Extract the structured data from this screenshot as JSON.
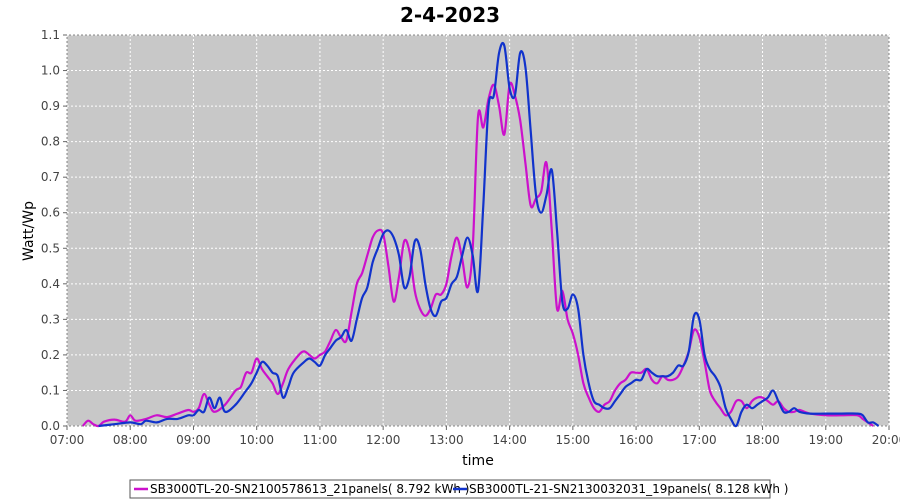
{
  "chart_data": {
    "type": "line",
    "title": "2-4-2023",
    "xlabel": "time",
    "ylabel": "Watt/Wp",
    "x_ticks": [
      "07:00",
      "08:00",
      "09:00",
      "10:00",
      "11:00",
      "12:00",
      "13:00",
      "14:00",
      "15:00",
      "16:00",
      "17:00",
      "18:00",
      "19:00",
      "20:00"
    ],
    "y_ticks": [
      "0.0",
      "0.1",
      "0.2",
      "0.3",
      "0.4",
      "0.5",
      "0.6",
      "0.7",
      "0.8",
      "0.9",
      "1.0",
      "1.1"
    ],
    "xlim": [
      "07:00",
      "20:00"
    ],
    "ylim": [
      0,
      1.1
    ],
    "grid": true,
    "background": "#c8c8c8",
    "legend_position": "bottom",
    "series": [
      {
        "name": "SB3000TL-20-SN2100578613_21panels( 8.792 kWh )",
        "color": "#cc11cc",
        "points": [
          [
            "07:15",
            0.0
          ],
          [
            "07:20",
            0.015
          ],
          [
            "07:25",
            0.005
          ],
          [
            "07:30",
            0.0
          ],
          [
            "07:35",
            0.012
          ],
          [
            "07:45",
            0.018
          ],
          [
            "07:55",
            0.012
          ],
          [
            "08:00",
            0.03
          ],
          [
            "08:05",
            0.015
          ],
          [
            "08:15",
            0.02
          ],
          [
            "08:25",
            0.03
          ],
          [
            "08:35",
            0.025
          ],
          [
            "08:45",
            0.035
          ],
          [
            "08:55",
            0.045
          ],
          [
            "09:00",
            0.04
          ],
          [
            "09:05",
            0.05
          ],
          [
            "09:10",
            0.09
          ],
          [
            "09:15",
            0.06
          ],
          [
            "09:20",
            0.04
          ],
          [
            "09:30",
            0.06
          ],
          [
            "09:40",
            0.1
          ],
          [
            "09:45",
            0.11
          ],
          [
            "09:50",
            0.15
          ],
          [
            "09:55",
            0.15
          ],
          [
            "10:00",
            0.19
          ],
          [
            "10:05",
            0.16
          ],
          [
            "10:10",
            0.14
          ],
          [
            "10:15",
            0.12
          ],
          [
            "10:20",
            0.09
          ],
          [
            "10:25",
            0.12
          ],
          [
            "10:30",
            0.16
          ],
          [
            "10:40",
            0.2
          ],
          [
            "10:45",
            0.21
          ],
          [
            "10:50",
            0.2
          ],
          [
            "10:55",
            0.19
          ],
          [
            "11:00",
            0.2
          ],
          [
            "11:05",
            0.21
          ],
          [
            "11:10",
            0.24
          ],
          [
            "11:15",
            0.27
          ],
          [
            "11:20",
            0.25
          ],
          [
            "11:25",
            0.24
          ],
          [
            "11:30",
            0.32
          ],
          [
            "11:35",
            0.4
          ],
          [
            "11:40",
            0.43
          ],
          [
            "11:45",
            0.48
          ],
          [
            "11:50",
            0.53
          ],
          [
            "11:55",
            0.55
          ],
          [
            "12:00",
            0.54
          ],
          [
            "12:05",
            0.45
          ],
          [
            "12:10",
            0.35
          ],
          [
            "12:15",
            0.42
          ],
          [
            "12:20",
            0.52
          ],
          [
            "12:25",
            0.49
          ],
          [
            "12:30",
            0.38
          ],
          [
            "12:35",
            0.33
          ],
          [
            "12:40",
            0.31
          ],
          [
            "12:45",
            0.33
          ],
          [
            "12:50",
            0.37
          ],
          [
            "12:55",
            0.37
          ],
          [
            "13:00",
            0.4
          ],
          [
            "13:05",
            0.48
          ],
          [
            "13:10",
            0.53
          ],
          [
            "13:15",
            0.47
          ],
          [
            "13:20",
            0.39
          ],
          [
            "13:25",
            0.5
          ],
          [
            "13:30",
            0.87
          ],
          [
            "13:35",
            0.84
          ],
          [
            "13:40",
            0.92
          ],
          [
            "13:45",
            0.96
          ],
          [
            "13:50",
            0.9
          ],
          [
            "13:55",
            0.82
          ],
          [
            "14:00",
            0.96
          ],
          [
            "14:05",
            0.93
          ],
          [
            "14:10",
            0.86
          ],
          [
            "14:15",
            0.74
          ],
          [
            "14:20",
            0.62
          ],
          [
            "14:25",
            0.64
          ],
          [
            "14:30",
            0.66
          ],
          [
            "14:35",
            0.74
          ],
          [
            "14:40",
            0.55
          ],
          [
            "14:45",
            0.33
          ],
          [
            "14:50",
            0.38
          ],
          [
            "14:55",
            0.3
          ],
          [
            "15:00",
            0.26
          ],
          [
            "15:05",
            0.2
          ],
          [
            "15:10",
            0.12
          ],
          [
            "15:15",
            0.08
          ],
          [
            "15:20",
            0.05
          ],
          [
            "15:25",
            0.04
          ],
          [
            "15:30",
            0.06
          ],
          [
            "15:35",
            0.07
          ],
          [
            "15:40",
            0.1
          ],
          [
            "15:45",
            0.12
          ],
          [
            "15:50",
            0.13
          ],
          [
            "15:55",
            0.15
          ],
          [
            "16:00",
            0.15
          ],
          [
            "16:05",
            0.15
          ],
          [
            "16:10",
            0.16
          ],
          [
            "16:15",
            0.13
          ],
          [
            "16:20",
            0.12
          ],
          [
            "16:25",
            0.14
          ],
          [
            "16:30",
            0.13
          ],
          [
            "16:35",
            0.13
          ],
          [
            "16:40",
            0.14
          ],
          [
            "16:45",
            0.17
          ],
          [
            "16:50",
            0.21
          ],
          [
            "16:55",
            0.27
          ],
          [
            "17:00",
            0.25
          ],
          [
            "17:05",
            0.18
          ],
          [
            "17:10",
            0.1
          ],
          [
            "17:15",
            0.07
          ],
          [
            "17:20",
            0.05
          ],
          [
            "17:25",
            0.03
          ],
          [
            "17:30",
            0.04
          ],
          [
            "17:35",
            0.07
          ],
          [
            "17:40",
            0.07
          ],
          [
            "17:45",
            0.05
          ],
          [
            "17:50",
            0.07
          ],
          [
            "17:55",
            0.08
          ],
          [
            "18:00",
            0.08
          ],
          [
            "18:05",
            0.07
          ],
          [
            "18:10",
            0.06
          ],
          [
            "18:15",
            0.07
          ],
          [
            "18:20",
            0.05
          ],
          [
            "18:25",
            0.04
          ],
          [
            "18:30",
            0.04
          ],
          [
            "18:35",
            0.045
          ],
          [
            "18:45",
            0.035
          ],
          [
            "19:00",
            0.03
          ],
          [
            "19:15",
            0.03
          ],
          [
            "19:30",
            0.03
          ],
          [
            "19:35",
            0.02
          ],
          [
            "19:40",
            0.01
          ],
          [
            "19:45",
            0.0
          ]
        ]
      },
      {
        "name": "SB3000TL-21-SN2130032031_19panels( 8.128 kWh )",
        "color": "#1133cc",
        "points": [
          [
            "07:30",
            0.0
          ],
          [
            "07:45",
            0.005
          ],
          [
            "08:00",
            0.01
          ],
          [
            "08:10",
            0.005
          ],
          [
            "08:15",
            0.015
          ],
          [
            "08:25",
            0.01
          ],
          [
            "08:35",
            0.02
          ],
          [
            "08:45",
            0.02
          ],
          [
            "08:55",
            0.03
          ],
          [
            "09:00",
            0.03
          ],
          [
            "09:05",
            0.045
          ],
          [
            "09:10",
            0.04
          ],
          [
            "09:15",
            0.08
          ],
          [
            "09:20",
            0.05
          ],
          [
            "09:25",
            0.08
          ],
          [
            "09:30",
            0.04
          ],
          [
            "09:40",
            0.06
          ],
          [
            "09:50",
            0.1
          ],
          [
            "09:55",
            0.12
          ],
          [
            "10:00",
            0.15
          ],
          [
            "10:05",
            0.18
          ],
          [
            "10:10",
            0.17
          ],
          [
            "10:15",
            0.15
          ],
          [
            "10:20",
            0.14
          ],
          [
            "10:25",
            0.08
          ],
          [
            "10:30",
            0.11
          ],
          [
            "10:35",
            0.15
          ],
          [
            "10:45",
            0.18
          ],
          [
            "10:50",
            0.19
          ],
          [
            "10:55",
            0.18
          ],
          [
            "11:00",
            0.17
          ],
          [
            "11:05",
            0.2
          ],
          [
            "11:10",
            0.22
          ],
          [
            "11:15",
            0.24
          ],
          [
            "11:20",
            0.25
          ],
          [
            "11:25",
            0.27
          ],
          [
            "11:30",
            0.24
          ],
          [
            "11:35",
            0.3
          ],
          [
            "11:40",
            0.36
          ],
          [
            "11:45",
            0.39
          ],
          [
            "11:50",
            0.46
          ],
          [
            "11:55",
            0.5
          ],
          [
            "12:00",
            0.54
          ],
          [
            "12:05",
            0.55
          ],
          [
            "12:10",
            0.53
          ],
          [
            "12:15",
            0.48
          ],
          [
            "12:20",
            0.39
          ],
          [
            "12:25",
            0.42
          ],
          [
            "12:30",
            0.52
          ],
          [
            "12:35",
            0.5
          ],
          [
            "12:40",
            0.4
          ],
          [
            "12:45",
            0.33
          ],
          [
            "12:50",
            0.31
          ],
          [
            "12:55",
            0.35
          ],
          [
            "13:00",
            0.36
          ],
          [
            "13:05",
            0.4
          ],
          [
            "13:10",
            0.42
          ],
          [
            "13:15",
            0.48
          ],
          [
            "13:20",
            0.53
          ],
          [
            "13:25",
            0.48
          ],
          [
            "13:30",
            0.38
          ],
          [
            "13:35",
            0.62
          ],
          [
            "13:40",
            0.9
          ],
          [
            "13:45",
            0.93
          ],
          [
            "13:50",
            1.05
          ],
          [
            "13:55",
            1.07
          ],
          [
            "14:00",
            0.95
          ],
          [
            "14:05",
            0.93
          ],
          [
            "14:10",
            1.05
          ],
          [
            "14:15",
            1.01
          ],
          [
            "14:20",
            0.83
          ],
          [
            "14:25",
            0.65
          ],
          [
            "14:30",
            0.6
          ],
          [
            "14:35",
            0.65
          ],
          [
            "14:40",
            0.72
          ],
          [
            "14:45",
            0.55
          ],
          [
            "14:50",
            0.35
          ],
          [
            "14:55",
            0.33
          ],
          [
            "15:00",
            0.37
          ],
          [
            "15:05",
            0.33
          ],
          [
            "15:10",
            0.2
          ],
          [
            "15:15",
            0.12
          ],
          [
            "15:20",
            0.07
          ],
          [
            "15:25",
            0.06
          ],
          [
            "15:30",
            0.05
          ],
          [
            "15:35",
            0.05
          ],
          [
            "15:40",
            0.07
          ],
          [
            "15:45",
            0.09
          ],
          [
            "15:50",
            0.11
          ],
          [
            "15:55",
            0.12
          ],
          [
            "16:00",
            0.13
          ],
          [
            "16:05",
            0.13
          ],
          [
            "16:10",
            0.16
          ],
          [
            "16:15",
            0.15
          ],
          [
            "16:20",
            0.14
          ],
          [
            "16:25",
            0.14
          ],
          [
            "16:30",
            0.14
          ],
          [
            "16:35",
            0.15
          ],
          [
            "16:40",
            0.17
          ],
          [
            "16:45",
            0.17
          ],
          [
            "16:50",
            0.21
          ],
          [
            "16:55",
            0.31
          ],
          [
            "17:00",
            0.3
          ],
          [
            "17:05",
            0.2
          ],
          [
            "17:10",
            0.16
          ],
          [
            "17:15",
            0.14
          ],
          [
            "17:20",
            0.11
          ],
          [
            "17:25",
            0.05
          ],
          [
            "17:30",
            0.02
          ],
          [
            "17:35",
            0.0
          ],
          [
            "17:40",
            0.04
          ],
          [
            "17:45",
            0.06
          ],
          [
            "17:50",
            0.05
          ],
          [
            "17:55",
            0.06
          ],
          [
            "18:00",
            0.07
          ],
          [
            "18:05",
            0.08
          ],
          [
            "18:10",
            0.1
          ],
          [
            "18:15",
            0.07
          ],
          [
            "18:20",
            0.04
          ],
          [
            "18:25",
            0.04
          ],
          [
            "18:30",
            0.05
          ],
          [
            "18:35",
            0.04
          ],
          [
            "18:45",
            0.035
          ],
          [
            "19:00",
            0.035
          ],
          [
            "19:15",
            0.035
          ],
          [
            "19:30",
            0.035
          ],
          [
            "19:35",
            0.03
          ],
          [
            "19:40",
            0.01
          ],
          [
            "19:45",
            0.01
          ],
          [
            "19:50",
            0.0
          ]
        ]
      }
    ]
  }
}
